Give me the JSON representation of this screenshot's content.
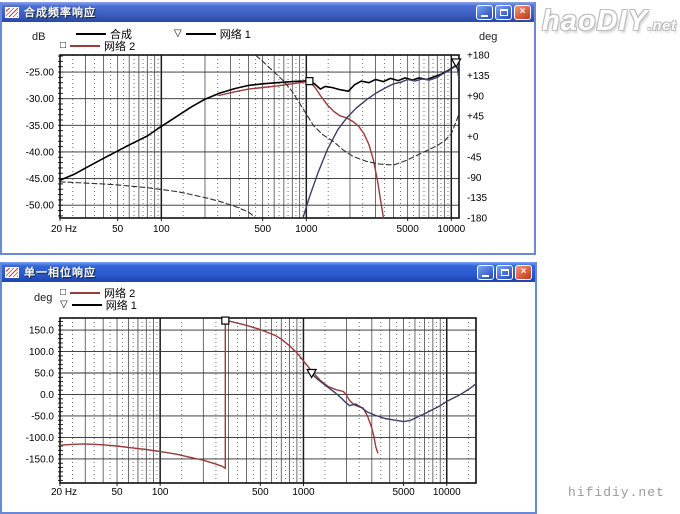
{
  "logo": {
    "text": "haoDIY",
    "suffix": ".net"
  },
  "watermark": "hifidiy.net",
  "icons": {
    "close_glyph": "×"
  },
  "windows": [
    {
      "title": "合成频率响应",
      "unit_left": "dB",
      "unit_right": "deg",
      "buttons": [
        "minimize",
        "maximize",
        "close"
      ],
      "legend": [
        {
          "marker": "",
          "label": "合成",
          "color": "#000000"
        },
        {
          "marker": "▽",
          "label": "网络 1",
          "color": "#000000"
        },
        {
          "marker": "□",
          "label": "网络 2",
          "color": "#993b3b"
        }
      ]
    },
    {
      "title": "单一相位响应",
      "unit_left": "deg",
      "buttons": [
        "minimize",
        "maximize",
        "close"
      ],
      "legend": [
        {
          "marker": "□",
          "label": "网络 2",
          "color": "#993b3b"
        },
        {
          "marker": "▽",
          "label": "网络 1",
          "color": "#000000"
        }
      ]
    }
  ],
  "chart_data": [
    {
      "type": "line",
      "title": "合成频率响应",
      "x_scale": "log",
      "x_range": [
        20,
        11300
      ],
      "x_ticks": [
        {
          "v": 20,
          "label": "20 Hz"
        },
        {
          "v": 50,
          "label": "50"
        },
        {
          "v": 100,
          "label": "100"
        },
        {
          "v": 500,
          "label": "500"
        },
        {
          "v": 1000,
          "label": "1000"
        },
        {
          "v": 5000,
          "label": "5000"
        },
        {
          "v": 10000,
          "label": "10000"
        }
      ],
      "y_left": {
        "label": "dB",
        "range": [
          -52.4,
          -21.8
        ],
        "minor": 1,
        "ticks": [
          -25,
          -30,
          -35,
          -40,
          -45,
          -50
        ],
        "tick_labels": [
          "-25.00",
          "-30.00",
          "-35.00",
          "-40.00",
          "-45.00",
          "-50.00"
        ]
      },
      "y_right": {
        "label": "deg",
        "range": [
          -180,
          180
        ],
        "ticks": [
          180,
          135,
          90,
          45,
          0,
          -45,
          -90,
          -135,
          -180
        ],
        "tick_labels": [
          "+180",
          "+135",
          "+90",
          "+45",
          "+0",
          "-45",
          "-90",
          "-135",
          "-180"
        ]
      },
      "series": [
        {
          "name": "合成",
          "axis": "left",
          "color": "#000000",
          "width": 1.6,
          "dashed": false,
          "paths": [
            [
              [
                20,
                -45.3
              ],
              [
                25,
                -44.2
              ],
              [
                32,
                -42.6
              ],
              [
                40,
                -41.2
              ],
              [
                50,
                -39.8
              ],
              [
                63,
                -38.4
              ],
              [
                80,
                -37.0
              ],
              [
                100,
                -35.2
              ],
              [
                125,
                -33.5
              ],
              [
                160,
                -31.6
              ],
              [
                200,
                -30.1
              ],
              [
                250,
                -29.0
              ],
              [
                320,
                -28.1
              ],
              [
                400,
                -27.5
              ],
              [
                500,
                -27.2
              ],
              [
                630,
                -27.0
              ],
              [
                800,
                -26.8
              ],
              [
                950,
                -26.7
              ],
              [
                1050,
                -26.6
              ],
              [
                1150,
                -27.3
              ],
              [
                1250,
                -28.2
              ],
              [
                1350,
                -27.7
              ],
              [
                1500,
                -27.9
              ],
              [
                1700,
                -28.3
              ],
              [
                1950,
                -28.6
              ],
              [
                2150,
                -27.4
              ],
              [
                2400,
                -26.7
              ],
              [
                2700,
                -27.0
              ],
              [
                3000,
                -26.4
              ],
              [
                3400,
                -26.8
              ],
              [
                3800,
                -26.2
              ],
              [
                4300,
                -26.6
              ],
              [
                4800,
                -26.1
              ],
              [
                5400,
                -26.5
              ],
              [
                6000,
                -26.1
              ],
              [
                6800,
                -26.4
              ],
              [
                7600,
                -25.9
              ],
              [
                8500,
                -25.4
              ],
              [
                9500,
                -24.7
              ],
              [
                10300,
                -24.1
              ],
              [
                10800,
                -23.7
              ],
              [
                11100,
                -24.6
              ],
              [
                11300,
                -26.2
              ]
            ]
          ]
        },
        {
          "name": "网络 2",
          "axis": "left",
          "color": "#993b3b",
          "width": 1.4,
          "dashed": false,
          "marker": {
            "shape": "square",
            "x": 1050,
            "y": -26.7
          },
          "paths": [
            [
              [
                250,
                -29.4
              ],
              [
                320,
                -28.7
              ],
              [
                400,
                -28.2
              ],
              [
                500,
                -27.9
              ],
              [
                630,
                -27.6
              ],
              [
                800,
                -27.2
              ],
              [
                950,
                -26.9
              ],
              [
                1050,
                -26.7
              ],
              [
                1150,
                -27.9
              ],
              [
                1250,
                -29.4
              ],
              [
                1400,
                -31.2
              ],
              [
                1550,
                -32.4
              ],
              [
                1700,
                -33.2
              ],
              [
                1900,
                -33.6
              ],
              [
                2100,
                -34.3
              ],
              [
                2300,
                -35.2
              ],
              [
                2500,
                -36.6
              ],
              [
                2700,
                -38.6
              ],
              [
                2900,
                -41.5
              ],
              [
                3100,
                -45.5
              ],
              [
                3250,
                -49.0
              ],
              [
                3400,
                -52.3
              ]
            ]
          ]
        },
        {
          "name": "网络 1",
          "axis": "left",
          "color": "#3e3e66",
          "width": 1.4,
          "dashed": false,
          "marker": {
            "shape": "triangle-down",
            "x": 10800,
            "y": -23.2
          },
          "paths": [
            [
              [
                950,
                -52.3
              ],
              [
                1050,
                -48.5
              ],
              [
                1200,
                -44.0
              ],
              [
                1400,
                -39.5
              ],
              [
                1650,
                -35.8
              ],
              [
                1900,
                -33.6
              ],
              [
                2200,
                -31.8
              ],
              [
                2600,
                -30.2
              ],
              [
                3000,
                -29.0
              ],
              [
                3500,
                -28.0
              ],
              [
                4000,
                -27.2
              ],
              [
                4500,
                -26.9
              ],
              [
                5000,
                -26.4
              ],
              [
                5600,
                -26.7
              ],
              [
                6300,
                -26.3
              ],
              [
                7100,
                -26.5
              ],
              [
                8000,
                -26.0
              ],
              [
                8500,
                -25.5
              ],
              [
                9500,
                -24.8
              ],
              [
                10300,
                -24.2
              ],
              [
                10800,
                -23.8
              ],
              [
                11100,
                -24.7
              ],
              [
                11300,
                -26.3
              ]
            ]
          ]
        },
        {
          "name": "phase-dashed",
          "axis": "right",
          "color": "#303030",
          "width": 1.1,
          "dashed": true,
          "paths": [
            [
              [
                20,
                -100
              ],
              [
                30,
                -103
              ],
              [
                40,
                -105
              ],
              [
                50,
                -107
              ],
              [
                63,
                -110
              ],
              [
                80,
                -113
              ],
              [
                100,
                -117
              ],
              [
                130,
                -122
              ],
              [
                160,
                -128
              ],
              [
                200,
                -135
              ],
              [
                250,
                -143
              ],
              [
                320,
                -154
              ],
              [
                400,
                -167
              ],
              [
                445,
                -179
              ]
            ],
            [
              [
                450,
                179
              ],
              [
                500,
                166
              ],
              [
                560,
                151
              ],
              [
                630,
                136
              ],
              [
                700,
                122
              ],
              [
                800,
                99
              ],
              [
                900,
                73
              ],
              [
                1000,
                50
              ],
              [
                1120,
                24
              ],
              [
                1300,
                4
              ],
              [
                1550,
                -12
              ],
              [
                1800,
                -30
              ],
              [
                2100,
                -44
              ],
              [
                2600,
                -55
              ],
              [
                3200,
                -61
              ],
              [
                4000,
                -63
              ],
              [
                4800,
                -54
              ],
              [
                5500,
                -45
              ],
              [
                6300,
                -36
              ],
              [
                7100,
                -28
              ],
              [
                8000,
                -20
              ],
              [
                9000,
                -9
              ],
              [
                10000,
                6
              ],
              [
                10700,
                30
              ],
              [
                11300,
                50
              ]
            ]
          ]
        }
      ]
    },
    {
      "type": "line",
      "title": "单一相位响应",
      "x_scale": "log",
      "x_range": [
        20,
        16000
      ],
      "x_ticks": [
        {
          "v": 20,
          "label": "20 Hz"
        },
        {
          "v": 50,
          "label": "50"
        },
        {
          "v": 100,
          "label": "100"
        },
        {
          "v": 500,
          "label": "500"
        },
        {
          "v": 1000,
          "label": "1000"
        },
        {
          "v": 5000,
          "label": "5000"
        },
        {
          "v": 10000,
          "label": "10000"
        }
      ],
      "y_left": {
        "label": "deg",
        "range": [
          -206,
          178
        ],
        "minor": 10,
        "ticks": [
          150,
          100,
          50,
          0,
          -50,
          -100,
          -150
        ],
        "tick_labels": [
          "150.0",
          "100.0",
          "50.0",
          "0.0",
          "-50.0",
          "-100.0",
          "-150.0"
        ]
      },
      "series": [
        {
          "name": "网络 2",
          "axis": "left",
          "color": "#993b3b",
          "width": 1.4,
          "dashed": false,
          "marker": {
            "shape": "square",
            "x": 285,
            "y": 172
          },
          "paths": [
            [
              [
                20,
                -118
              ],
              [
                25,
                -116
              ],
              [
                30,
                -115
              ],
              [
                40,
                -117
              ],
              [
                50,
                -120
              ],
              [
                63,
                -124
              ],
              [
                80,
                -128
              ],
              [
                100,
                -133
              ],
              [
                130,
                -139
              ],
              [
                160,
                -146
              ],
              [
                200,
                -153
              ],
              [
                240,
                -161
              ],
              [
                270,
                -167
              ],
              [
                285,
                -172
              ],
              [
                285,
                172
              ],
              [
                310,
                170
              ],
              [
                400,
                161
              ],
              [
                500,
                151
              ],
              [
                630,
                138
              ],
              [
                700,
                129
              ],
              [
                800,
                113
              ],
              [
                900,
                97
              ],
              [
                1000,
                78
              ],
              [
                1100,
                61
              ],
              [
                1200,
                47
              ],
              [
                1300,
                34
              ],
              [
                1400,
                25
              ],
              [
                1500,
                18
              ],
              [
                1700,
                11
              ],
              [
                1900,
                7
              ],
              [
                2000,
                -2
              ],
              [
                2100,
                -14
              ],
              [
                2250,
                -24
              ],
              [
                2450,
                -29
              ],
              [
                2600,
                -31
              ],
              [
                2800,
                -50
              ],
              [
                3000,
                -78
              ],
              [
                3100,
                -98
              ],
              [
                3200,
                -122
              ],
              [
                3300,
                -136
              ]
            ]
          ]
        },
        {
          "name": "网络 1",
          "axis": "left",
          "color": "#3e3e66",
          "width": 1.4,
          "dashed": false,
          "marker": {
            "shape": "triangle-down",
            "x": 1140,
            "y": 50
          },
          "paths": [
            [
              [
                1140,
                48
              ],
              [
                1250,
                36
              ],
              [
                1400,
                23
              ],
              [
                1550,
                12
              ],
              [
                1750,
                -2
              ],
              [
                1950,
                -17
              ],
              [
                2100,
                -26
              ],
              [
                2300,
                -22
              ],
              [
                2500,
                -29
              ],
              [
                2800,
                -41
              ],
              [
                3200,
                -49
              ],
              [
                3700,
                -56
              ],
              [
                4200,
                -59
              ],
              [
                5000,
                -63
              ],
              [
                5600,
                -60
              ],
              [
                6300,
                -52
              ],
              [
                7100,
                -44
              ],
              [
                8000,
                -35
              ],
              [
                9000,
                -26
              ],
              [
                10000,
                -16
              ],
              [
                11000,
                -9
              ],
              [
                12000,
                -3
              ],
              [
                13000,
                4
              ],
              [
                14500,
                14
              ],
              [
                16000,
                25
              ]
            ]
          ]
        }
      ]
    }
  ]
}
